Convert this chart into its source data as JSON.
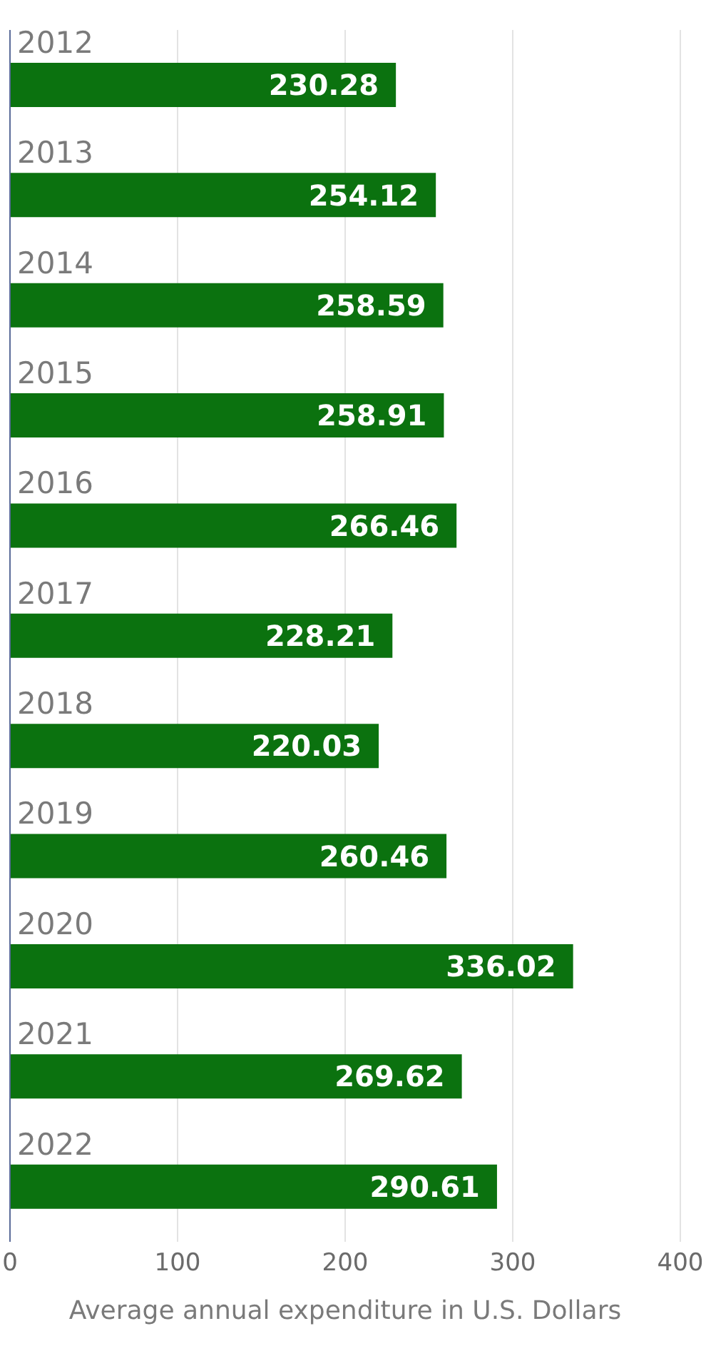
{
  "chart_data": {
    "type": "bar",
    "orientation": "horizontal",
    "xlabel": "Average annual expenditure in U.S. Dollars",
    "categories": [
      "2012",
      "2013",
      "2014",
      "2015",
      "2016",
      "2017",
      "2018",
      "2019",
      "2020",
      "2021",
      "2022"
    ],
    "values": [
      230.28,
      254.12,
      258.59,
      258.91,
      266.46,
      228.21,
      220.03,
      260.46,
      336.02,
      269.62,
      290.61
    ],
    "color": "#0b720f",
    "xlim": [
      0,
      400
    ],
    "xticks": [
      0,
      100,
      200,
      300,
      400
    ],
    "grid": "x",
    "data_labels": true,
    "legend": false
  }
}
